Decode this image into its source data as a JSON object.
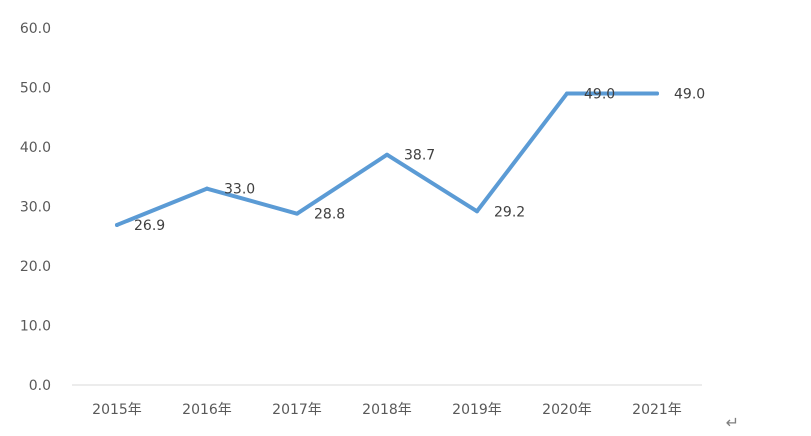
{
  "chart_data": {
    "type": "line",
    "title": "",
    "xlabel": "",
    "ylabel": "",
    "categories": [
      "2015年",
      "2016年",
      "2017年",
      "2018年",
      "2019年",
      "2020年",
      "2021年"
    ],
    "series": [
      {
        "values": [
          26.9,
          33.0,
          28.8,
          38.7,
          29.2,
          49.0,
          49.0
        ],
        "data_labels": [
          "26.9",
          "33.0",
          "28.8",
          "38.7",
          "29.2",
          "49.0",
          "49.0"
        ],
        "color": "#5b9bd5"
      }
    ],
    "ylim": [
      0,
      60
    ],
    "y_ticks": [
      0,
      10,
      20,
      30,
      40,
      50,
      60
    ],
    "y_tick_labels": [
      "0.0",
      "10.0",
      "20.0",
      "30.0",
      "40.0",
      "50.0",
      "60.0"
    ],
    "grid": false,
    "legend": "none",
    "axis_color": "#d9d9d9",
    "text_color": "#595959"
  },
  "return_symbol": "↵"
}
